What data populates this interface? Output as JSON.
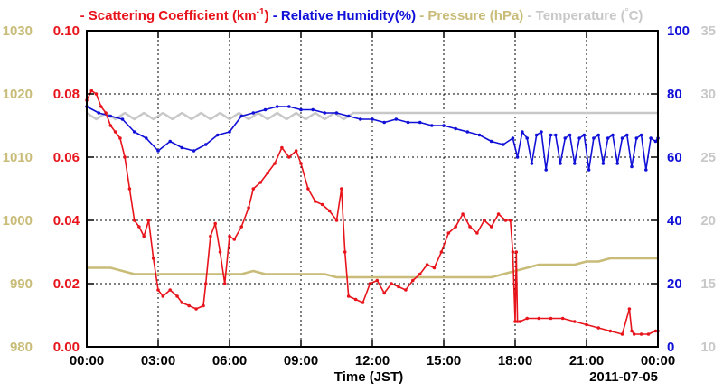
{
  "chart_data": {
    "type": "line",
    "title_parts": [
      {
        "dash": "-",
        "text": "Scattering Coefficient (km",
        "sup": "-1",
        "close": ")",
        "color": "#e8141c"
      },
      {
        "dash": "-",
        "text": "Relative Humidity(%)",
        "color": "#1010d8"
      },
      {
        "dash": "-",
        "text": "Pressure (hPa)",
        "color": "#c8bc78"
      },
      {
        "dash": "-",
        "text": "Temperature (",
        "deg": "°",
        "close": "C)",
        "color": "#c8c8c8"
      }
    ],
    "xlabel": "Time (JST)",
    "date_label": "2011-07-05",
    "x_ticks": [
      "00:00",
      "03:00",
      "06:00",
      "09:00",
      "12:00",
      "15:00",
      "18:00",
      "21:00",
      "00:00"
    ],
    "xlim": [
      0,
      24
    ],
    "grid": true,
    "axes": {
      "scattering": {
        "ticks": [
          "0.00",
          "0.02",
          "0.04",
          "0.06",
          "0.08",
          "0.10"
        ],
        "range": [
          0,
          0.1
        ],
        "color": "#e8141c"
      },
      "pressure": {
        "ticks": [
          "980",
          "990",
          "1000",
          "1010",
          "1020",
          "1030"
        ],
        "range": [
          980,
          1030
        ],
        "color": "#c8bc78"
      },
      "humidity": {
        "ticks": [
          "0",
          "20",
          "40",
          "60",
          "80",
          "100"
        ],
        "range": [
          0,
          100
        ],
        "color": "#1010d8"
      },
      "temperature": {
        "ticks": [
          "10",
          "15",
          "20",
          "25",
          "30",
          "35"
        ],
        "range": [
          10,
          35
        ],
        "color": "#c8c8c8"
      }
    },
    "series": [
      {
        "name": "Scattering Coefficient",
        "axis": "scattering",
        "color": "#e8141c",
        "x": [
          0,
          0.2,
          0.4,
          0.6,
          0.8,
          1.0,
          1.2,
          1.4,
          1.6,
          1.8,
          2.0,
          2.2,
          2.4,
          2.6,
          2.8,
          3.0,
          3.2,
          3.5,
          3.8,
          4.0,
          4.3,
          4.6,
          4.9,
          5.0,
          5.2,
          5.4,
          5.6,
          5.8,
          6.0,
          6.2,
          6.5,
          6.8,
          7.0,
          7.3,
          7.6,
          7.9,
          8.2,
          8.5,
          8.8,
          9.0,
          9.3,
          9.6,
          9.9,
          10.2,
          10.5,
          10.7,
          10.85,
          11.0,
          11.3,
          11.6,
          11.9,
          12.2,
          12.5,
          12.8,
          13.1,
          13.4,
          13.7,
          14.0,
          14.3,
          14.6,
          14.9,
          15.2,
          15.5,
          15.8,
          16.1,
          16.4,
          16.7,
          17.0,
          17.3,
          17.6,
          17.8,
          17.9,
          18.0,
          18.05,
          18.1,
          18.2,
          18.5,
          19.0,
          19.5,
          20.0,
          20.5,
          21.0,
          21.5,
          22.0,
          22.5,
          22.8,
          22.9,
          23.0,
          23.3,
          23.6,
          23.9,
          24.0
        ],
        "values": [
          0.078,
          0.081,
          0.08,
          0.076,
          0.074,
          0.07,
          0.068,
          0.066,
          0.06,
          0.05,
          0.04,
          0.038,
          0.035,
          0.04,
          0.028,
          0.018,
          0.016,
          0.018,
          0.016,
          0.014,
          0.013,
          0.012,
          0.013,
          0.02,
          0.035,
          0.039,
          0.03,
          0.02,
          0.035,
          0.034,
          0.038,
          0.044,
          0.05,
          0.052,
          0.055,
          0.058,
          0.063,
          0.06,
          0.062,
          0.058,
          0.05,
          0.046,
          0.045,
          0.043,
          0.04,
          0.05,
          0.03,
          0.016,
          0.015,
          0.014,
          0.02,
          0.021,
          0.017,
          0.02,
          0.019,
          0.018,
          0.021,
          0.023,
          0.026,
          0.025,
          0.03,
          0.036,
          0.038,
          0.042,
          0.038,
          0.036,
          0.04,
          0.038,
          0.042,
          0.04,
          0.04,
          0.03,
          0.008,
          0.03,
          0.008,
          0.008,
          0.009,
          0.009,
          0.009,
          0.009,
          0.008,
          0.007,
          0.006,
          0.005,
          0.004,
          0.012,
          0.005,
          0.004,
          0.004,
          0.004,
          0.005,
          0.005
        ]
      },
      {
        "name": "Relative Humidity",
        "axis": "humidity",
        "color": "#1010d8",
        "x": [
          0,
          0.5,
          1.0,
          1.5,
          2.0,
          2.5,
          3.0,
          3.5,
          4.0,
          4.5,
          5.0,
          5.5,
          6.0,
          6.5,
          7.0,
          7.5,
          8.0,
          8.5,
          9.0,
          9.5,
          10.0,
          10.5,
          11.0,
          11.5,
          12.0,
          12.5,
          13.0,
          13.5,
          14.0,
          14.5,
          15.0,
          15.5,
          16.0,
          16.5,
          17.0,
          17.5,
          17.9,
          18.1,
          18.3,
          18.5,
          18.7,
          18.9,
          19.1,
          19.3,
          19.5,
          19.7,
          19.9,
          20.1,
          20.3,
          20.5,
          20.7,
          20.9,
          21.1,
          21.3,
          21.5,
          21.7,
          21.9,
          22.1,
          22.3,
          22.5,
          22.7,
          22.9,
          23.1,
          23.3,
          23.5,
          23.7,
          23.9,
          24.0
        ],
        "values": [
          76,
          74,
          73,
          72,
          68,
          66,
          62,
          65,
          63,
          62,
          64,
          67,
          68,
          73,
          74,
          75,
          76,
          76,
          75,
          75,
          74,
          74,
          73,
          72,
          72,
          71,
          72,
          71,
          71,
          70,
          70,
          69,
          68,
          67,
          65,
          64,
          66,
          60,
          68,
          66,
          58,
          67,
          68,
          56,
          67,
          67,
          58,
          66,
          67,
          58,
          66,
          67,
          56,
          66,
          67,
          58,
          66,
          67,
          58,
          66,
          67,
          57,
          66,
          67,
          56,
          66,
          65,
          66
        ]
      },
      {
        "name": "Pressure",
        "axis": "pressure",
        "color": "#c8bc78",
        "x": [
          0,
          0.5,
          1.0,
          1.5,
          2.0,
          2.5,
          3.0,
          3.5,
          4.0,
          4.5,
          5.0,
          5.5,
          6.0,
          6.5,
          7.0,
          7.5,
          8.0,
          8.5,
          9.0,
          9.5,
          10.0,
          10.5,
          11.0,
          11.5,
          12.0,
          12.5,
          13.0,
          13.5,
          14.0,
          14.5,
          15.0,
          15.5,
          16.0,
          16.5,
          17.0,
          17.5,
          18.0,
          18.5,
          19.0,
          19.5,
          20.0,
          20.5,
          21.0,
          21.5,
          22.0,
          22.5,
          23.0,
          23.5,
          24.0
        ],
        "values": [
          992.5,
          992.5,
          992.5,
          992,
          991.5,
          991.5,
          991.5,
          991.5,
          991.5,
          991.5,
          991.5,
          991.5,
          991.5,
          991.5,
          992,
          991.5,
          991.5,
          991.5,
          991.5,
          991.5,
          991.5,
          991,
          991,
          991,
          991,
          991,
          991,
          991,
          991,
          991,
          991,
          991,
          991,
          991,
          991,
          991.5,
          992,
          992.5,
          993,
          993,
          993,
          993,
          993.5,
          993.5,
          994,
          994,
          994,
          994,
          994
        ]
      },
      {
        "name": "Temperature",
        "axis": "temperature",
        "color": "#c8c8c8",
        "x": [
          0,
          0.4,
          0.8,
          1.2,
          1.6,
          2.0,
          2.4,
          2.8,
          3.2,
          3.6,
          4.0,
          4.4,
          4.8,
          5.2,
          5.6,
          6.0,
          6.4,
          6.8,
          7.2,
          7.6,
          8.0,
          8.4,
          8.8,
          9.2,
          9.6,
          10.0,
          10.4,
          10.8,
          11.2,
          12.0,
          14.0,
          16.0,
          18.0,
          20.0,
          22.0,
          24.0
        ],
        "values": [
          28.5,
          28,
          28.5,
          28,
          28.5,
          28,
          28.5,
          28,
          28.5,
          28,
          28.5,
          28,
          28.5,
          28,
          28.5,
          28,
          28.5,
          28,
          28.5,
          28,
          28.5,
          28,
          28.5,
          28,
          28.5,
          28,
          28.5,
          28,
          28.5,
          28.5,
          28.5,
          28.5,
          28.5,
          28.5,
          28.5,
          28.5
        ]
      }
    ]
  }
}
